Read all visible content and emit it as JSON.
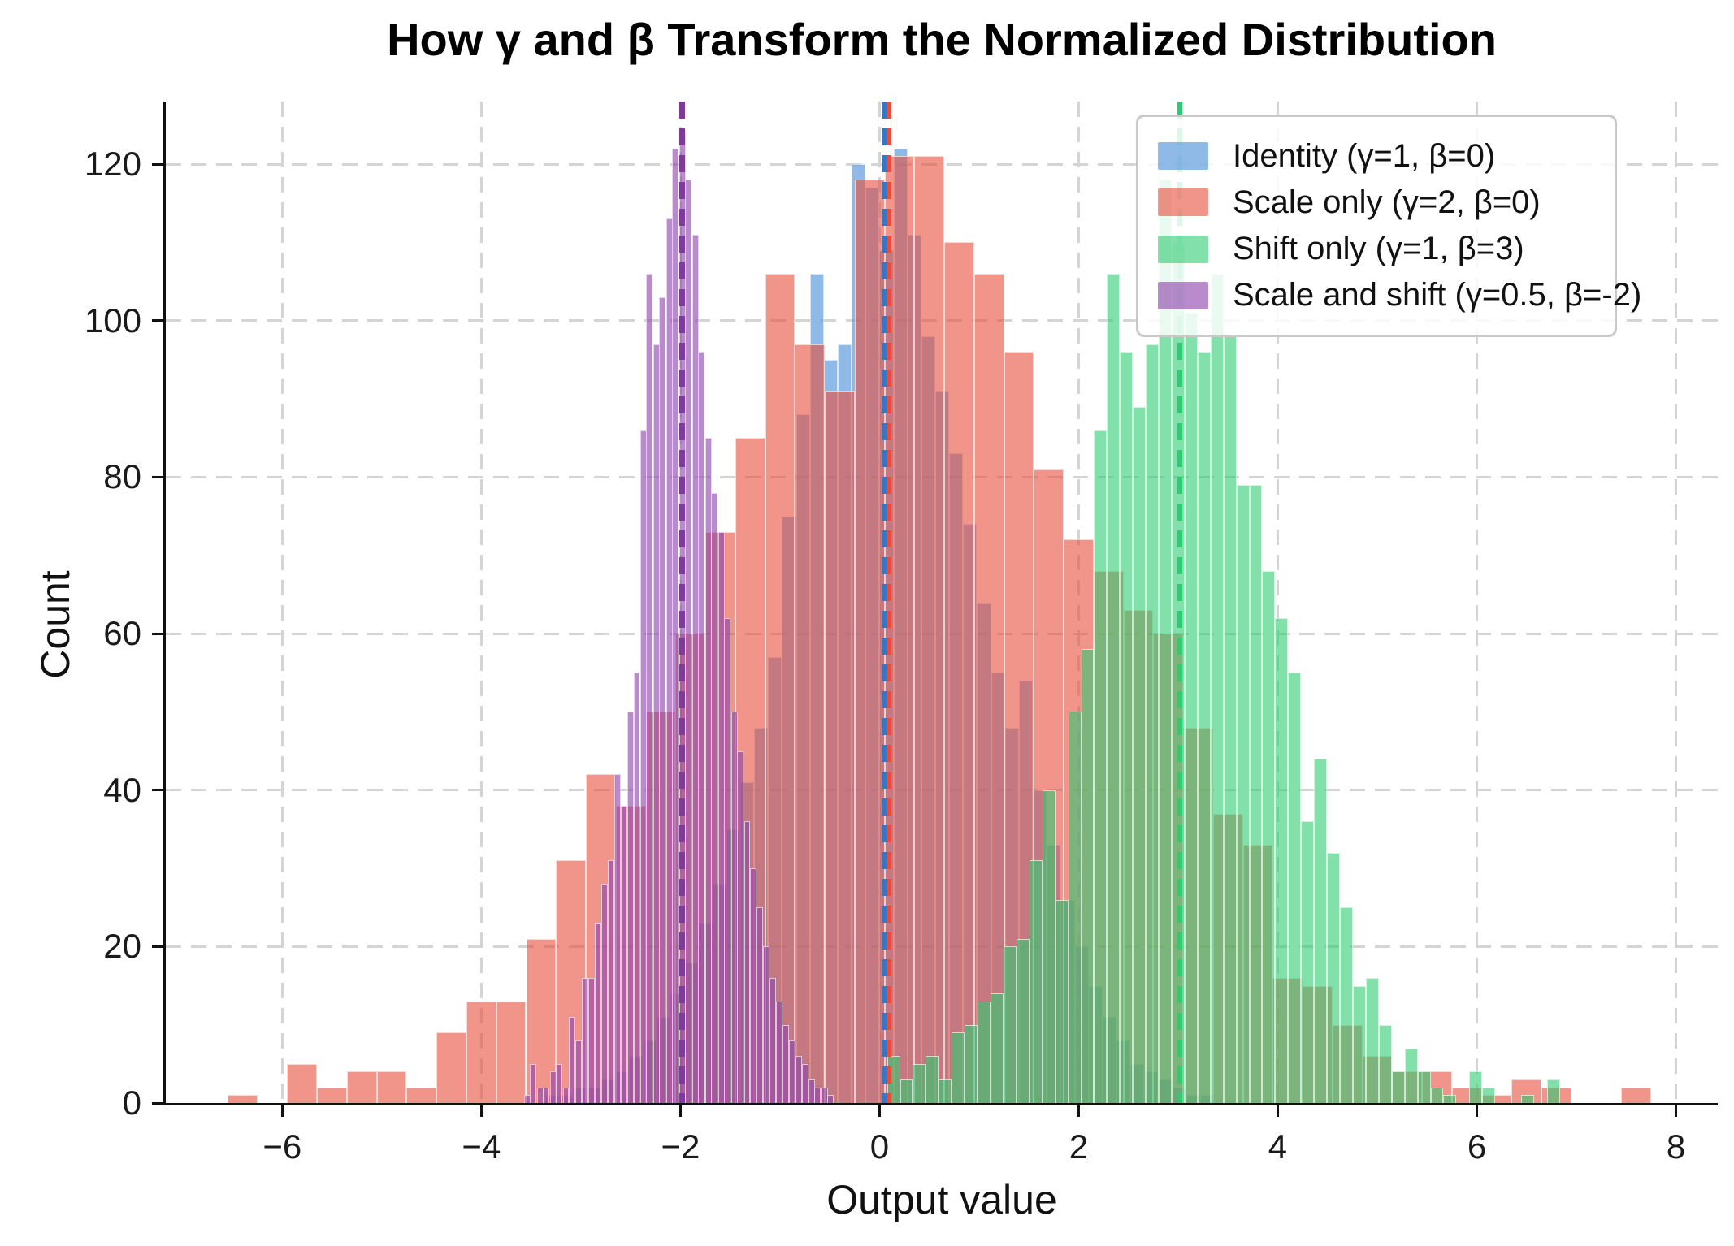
{
  "title": "How γ and β Transform the Normalized Distribution",
  "axes": {
    "xlabel": "Output value",
    "ylabel": "Count",
    "xticks": [
      {
        "v": -6,
        "label": "−6"
      },
      {
        "v": -4,
        "label": "−4"
      },
      {
        "v": -2,
        "label": "−2"
      },
      {
        "v": 0,
        "label": "0"
      },
      {
        "v": 2,
        "label": "2"
      },
      {
        "v": 4,
        "label": "4"
      },
      {
        "v": 6,
        "label": "6"
      },
      {
        "v": 8,
        "label": "8"
      }
    ],
    "yticks": [
      {
        "v": 0,
        "label": "0"
      },
      {
        "v": 20,
        "label": "20"
      },
      {
        "v": 40,
        "label": "40"
      },
      {
        "v": 60,
        "label": "60"
      },
      {
        "v": 80,
        "label": "80"
      },
      {
        "v": 100,
        "label": "100"
      },
      {
        "v": 120,
        "label": "120"
      }
    ]
  },
  "legend": {
    "items": [
      {
        "label": "Identity (γ=1, β=0)",
        "swatch": "rgba(74,144,217,0.62)"
      },
      {
        "label": "Scale only (γ=2, β=0)",
        "swatch": "rgba(231,76,60,0.60)"
      },
      {
        "label": "Shift only (γ=1, β=3)",
        "swatch": "rgba(46,204,113,0.60)"
      },
      {
        "label": "Scale and shift (γ=0.5, β=-2)",
        "swatch": "rgba(142,68,173,0.62)"
      }
    ]
  },
  "chart_data": {
    "type": "bar",
    "subtype": "overlaid-histograms",
    "title": "How γ and β Transform the Normalized Distribution",
    "xlabel": "Output value",
    "ylabel": "Count",
    "xlim": [
      -7.17,
      8.42
    ],
    "ylim": [
      0,
      128
    ],
    "grid": true,
    "legend_position": "upper right",
    "series": [
      {
        "name": "identity",
        "label": "Identity (γ=1, β=0)",
        "gamma": 1,
        "beta": 0,
        "fill": "rgba(74,144,217,0.62)",
        "line_color": "#3776C2",
        "mean_line_x": 0.045,
        "bin_width": 0.14,
        "bins": [
          [
            -3.29,
            1
          ],
          [
            -3.15,
            1
          ],
          [
            -3.01,
            2
          ],
          [
            -2.87,
            2
          ],
          [
            -2.73,
            3
          ],
          [
            -2.59,
            4
          ],
          [
            -2.45,
            6
          ],
          [
            -2.31,
            8
          ],
          [
            -2.17,
            11
          ],
          [
            -2.03,
            14
          ],
          [
            -1.89,
            18
          ],
          [
            -1.75,
            23
          ],
          [
            -1.61,
            28
          ],
          [
            -1.47,
            35
          ],
          [
            -1.33,
            41
          ],
          [
            -1.19,
            48
          ],
          [
            -1.05,
            57
          ],
          [
            -0.91,
            75
          ],
          [
            -0.77,
            88
          ],
          [
            -0.63,
            106
          ],
          [
            -0.49,
            95
          ],
          [
            -0.35,
            97
          ],
          [
            -0.21,
            120
          ],
          [
            -0.07,
            117
          ],
          [
            0.07,
            109
          ],
          [
            0.21,
            122
          ],
          [
            0.35,
            111
          ],
          [
            0.49,
            98
          ],
          [
            0.63,
            91
          ],
          [
            0.77,
            83
          ],
          [
            0.91,
            74
          ],
          [
            1.05,
            64
          ],
          [
            1.19,
            55
          ],
          [
            1.33,
            48
          ],
          [
            1.47,
            54
          ],
          [
            1.61,
            40
          ],
          [
            1.75,
            33
          ],
          [
            1.89,
            26
          ],
          [
            2.03,
            20
          ],
          [
            2.17,
            15
          ],
          [
            2.31,
            11
          ],
          [
            2.45,
            8
          ],
          [
            2.59,
            5
          ],
          [
            2.73,
            4
          ],
          [
            2.87,
            3
          ],
          [
            3.01,
            2
          ],
          [
            3.15,
            1
          ],
          [
            3.29,
            1
          ]
        ]
      },
      {
        "name": "scale_only",
        "label": "Scale only (γ=2, β=0)",
        "gamma": 2,
        "beta": 0,
        "fill": "rgba(231,76,60,0.60)",
        "line_color": "#E74C3C",
        "mean_line_x": 0.095,
        "bin_width": 0.3,
        "bins": [
          [
            -6.4,
            1
          ],
          [
            -5.8,
            5
          ],
          [
            -5.5,
            2
          ],
          [
            -5.2,
            4
          ],
          [
            -4.9,
            4
          ],
          [
            -4.6,
            2
          ],
          [
            -4.3,
            9
          ],
          [
            -4.0,
            13
          ],
          [
            -3.7,
            13
          ],
          [
            -3.4,
            21
          ],
          [
            -3.1,
            31
          ],
          [
            -2.8,
            42
          ],
          [
            -2.5,
            38
          ],
          [
            -2.2,
            50
          ],
          [
            -1.9,
            60
          ],
          [
            -1.6,
            73
          ],
          [
            -1.3,
            85
          ],
          [
            -1.0,
            106
          ],
          [
            -0.7,
            97
          ],
          [
            -0.4,
            91
          ],
          [
            -0.1,
            118
          ],
          [
            0.2,
            121
          ],
          [
            0.5,
            121
          ],
          [
            0.8,
            110
          ],
          [
            1.1,
            106
          ],
          [
            1.4,
            96
          ],
          [
            1.7,
            81
          ],
          [
            2.0,
            72
          ],
          [
            2.3,
            68
          ],
          [
            2.6,
            63
          ],
          [
            2.9,
            60
          ],
          [
            3.2,
            48
          ],
          [
            3.5,
            37
          ],
          [
            3.8,
            33
          ],
          [
            4.1,
            16
          ],
          [
            4.4,
            15
          ],
          [
            4.7,
            10
          ],
          [
            5.0,
            6
          ],
          [
            5.3,
            4
          ],
          [
            5.6,
            4
          ],
          [
            5.9,
            2
          ],
          [
            6.2,
            1
          ],
          [
            6.5,
            3
          ],
          [
            6.8,
            2
          ],
          [
            7.6,
            2
          ]
        ]
      },
      {
        "name": "shift_only",
        "label": "Shift only (γ=1, β=3)",
        "gamma": 1,
        "beta": 3,
        "fill": "rgba(46,204,113,0.60)",
        "line_color": "#2ECC71",
        "mean_line_x": 3.02,
        "bin_width": 0.13,
        "bins": [
          [
            0.14,
            6
          ],
          [
            0.27,
            3
          ],
          [
            0.4,
            5
          ],
          [
            0.53,
            6
          ],
          [
            0.66,
            3
          ],
          [
            0.79,
            9
          ],
          [
            0.92,
            10
          ],
          [
            1.05,
            13
          ],
          [
            1.18,
            14
          ],
          [
            1.31,
            20
          ],
          [
            1.44,
            21
          ],
          [
            1.57,
            31
          ],
          [
            1.7,
            40
          ],
          [
            1.83,
            26
          ],
          [
            1.96,
            50
          ],
          [
            2.09,
            58
          ],
          [
            2.22,
            86
          ],
          [
            2.35,
            106
          ],
          [
            2.48,
            96
          ],
          [
            2.61,
            89
          ],
          [
            2.74,
            97
          ],
          [
            2.87,
            118
          ],
          [
            3.0,
            110
          ],
          [
            3.13,
            101
          ],
          [
            3.26,
            96
          ],
          [
            3.39,
            106
          ],
          [
            3.52,
            98
          ],
          [
            3.65,
            79
          ],
          [
            3.78,
            79
          ],
          [
            3.91,
            68
          ],
          [
            4.04,
            62
          ],
          [
            4.17,
            55
          ],
          [
            4.3,
            36
          ],
          [
            4.43,
            44
          ],
          [
            4.56,
            32
          ],
          [
            4.69,
            25
          ],
          [
            4.82,
            15
          ],
          [
            4.95,
            16
          ],
          [
            5.08,
            10
          ],
          [
            5.21,
            4
          ],
          [
            5.34,
            7
          ],
          [
            5.47,
            4
          ],
          [
            5.6,
            2
          ],
          [
            5.73,
            1
          ],
          [
            5.99,
            4
          ],
          [
            6.12,
            2
          ],
          [
            6.51,
            1
          ],
          [
            6.77,
            3
          ]
        ]
      },
      {
        "name": "scale_and_shift",
        "label": "Scale and shift (γ=0.5, β=-2)",
        "gamma": 0.5,
        "beta": -2,
        "fill": "rgba(142,68,173,0.62)",
        "line_color": "#7D3C98",
        "mean_line_x": -1.98,
        "bin_width": 0.065,
        "bins": [
          [
            -3.54,
            1
          ],
          [
            -3.48,
            5
          ],
          [
            -3.41,
            2
          ],
          [
            -3.35,
            2
          ],
          [
            -3.28,
            4
          ],
          [
            -3.22,
            5
          ],
          [
            -3.15,
            2
          ],
          [
            -3.09,
            11
          ],
          [
            -3.02,
            8
          ],
          [
            -2.96,
            16
          ],
          [
            -2.89,
            16
          ],
          [
            -2.83,
            23
          ],
          [
            -2.76,
            28
          ],
          [
            -2.7,
            31
          ],
          [
            -2.63,
            42
          ],
          [
            -2.57,
            38
          ],
          [
            -2.5,
            50
          ],
          [
            -2.44,
            55
          ],
          [
            -2.37,
            86
          ],
          [
            -2.31,
            106
          ],
          [
            -2.24,
            97
          ],
          [
            -2.18,
            103
          ],
          [
            -2.11,
            113
          ],
          [
            -2.05,
            122
          ],
          [
            -1.98,
            124
          ],
          [
            -1.92,
            118
          ],
          [
            -1.85,
            111
          ],
          [
            -1.79,
            96
          ],
          [
            -1.72,
            85
          ],
          [
            -1.66,
            78
          ],
          [
            -1.59,
            73
          ],
          [
            -1.53,
            62
          ],
          [
            -1.46,
            50
          ],
          [
            -1.4,
            45
          ],
          [
            -1.33,
            36
          ],
          [
            -1.27,
            30
          ],
          [
            -1.2,
            25
          ],
          [
            -1.14,
            20
          ],
          [
            -1.07,
            16
          ],
          [
            -1.01,
            13
          ],
          [
            -0.94,
            10
          ],
          [
            -0.88,
            8
          ],
          [
            -0.81,
            6
          ],
          [
            -0.75,
            5
          ],
          [
            -0.68,
            3
          ],
          [
            -0.62,
            2
          ],
          [
            -0.55,
            2
          ],
          [
            -0.49,
            1
          ]
        ]
      }
    ]
  }
}
